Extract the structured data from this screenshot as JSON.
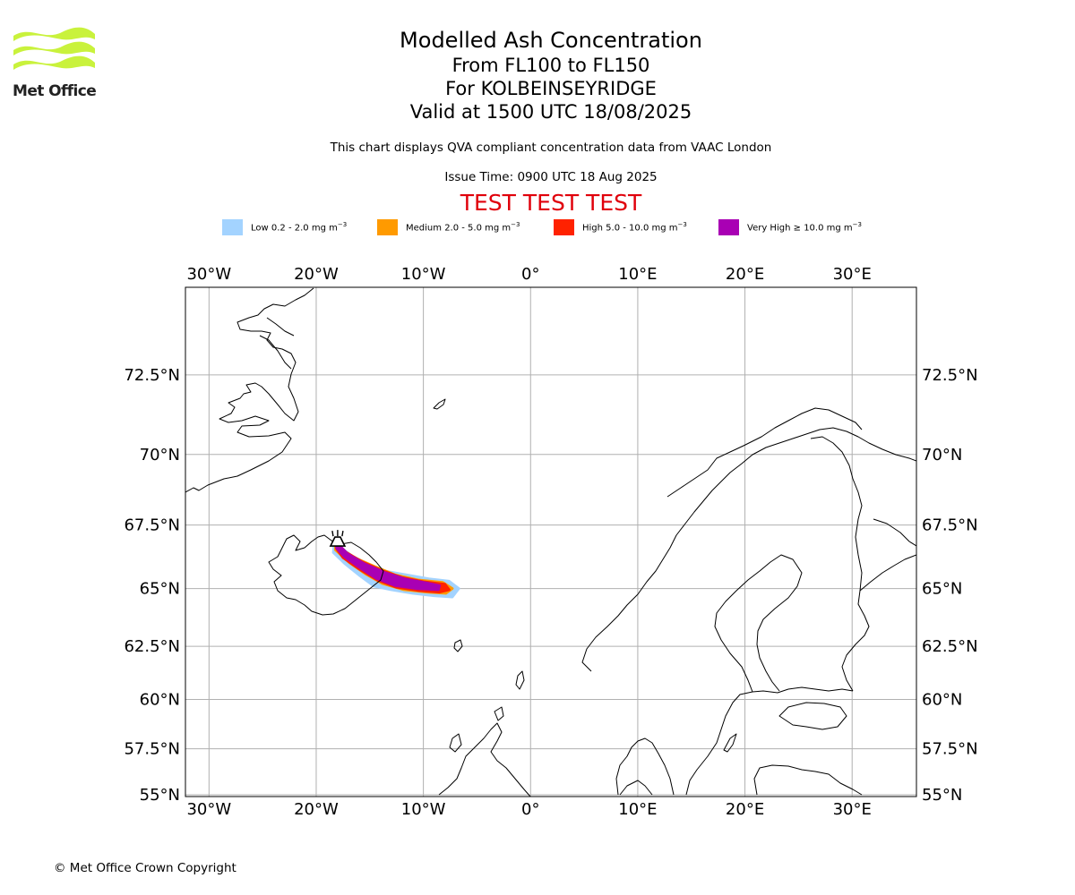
{
  "branding": {
    "logo_text": "Met Office",
    "logo_color": "#c9f23c",
    "logo_text_color": "#222222"
  },
  "header": {
    "title": "Modelled Ash Concentration",
    "levels": "From FL100 to FL150",
    "location": "For KOLBEINSEYRIDGE",
    "valid": "Valid at 1500 UTC 18/08/2025",
    "subtitle": "This chart displays QVA compliant concentration data from VAAC London",
    "issue_time": "Issue Time: 0900 UTC 18 Aug 2025",
    "test_banner": "TEST TEST TEST",
    "test_color": "#e0000b"
  },
  "legend": [
    {
      "name": "Low",
      "range": "0.2 - 2.0",
      "unit": "mg m",
      "exp": "−3",
      "color": "#a3d3ff",
      "cmp": ""
    },
    {
      "name": "Medium",
      "range": "2.0 - 5.0",
      "unit": "mg m",
      "exp": "−3",
      "color": "#ff9a00",
      "cmp": ""
    },
    {
      "name": "High",
      "range": "5.0 - 10.0",
      "unit": "mg m",
      "exp": "−3",
      "color": "#ff2200",
      "cmp": ""
    },
    {
      "name": "Very High",
      "range": "10.0",
      "unit": "mg m",
      "exp": "−3",
      "color": "#a900b4",
      "cmp": "≥"
    }
  ],
  "map": {
    "lon_range": [
      -32.2,
      36.0
    ],
    "lat_range": [
      54.9,
      74.9
    ],
    "lon_ticks": [
      -30,
      -20,
      -10,
      0,
      10,
      20,
      30
    ],
    "lon_tick_labels": [
      "30°W",
      "20°W",
      "10°W",
      "0°",
      "10°E",
      "20°E",
      "30°E"
    ],
    "lat_ticks": [
      55,
      57.5,
      60,
      62.5,
      65,
      67.5,
      70,
      72.5
    ],
    "lat_tick_labels": [
      "55°N",
      "57.5°N",
      "60°N",
      "62.5°N",
      "65°N",
      "67.5°N",
      "70°N",
      "72.5°N"
    ],
    "gridlines": true,
    "volcano": {
      "name": "KOLBEINSEYRIDGE",
      "lon": -18.0,
      "lat": 66.7
    },
    "ash_plume": [
      {
        "level": "Low",
        "path": [
          [
            -18.3,
            66.9
          ],
          [
            -17.6,
            66.6
          ],
          [
            -16.6,
            66.3
          ],
          [
            -15.2,
            66.0
          ],
          [
            -13.5,
            65.7
          ],
          [
            -11.5,
            65.55
          ],
          [
            -9.5,
            65.4
          ],
          [
            -7.6,
            65.3
          ],
          [
            -6.7,
            65.0
          ],
          [
            -7.3,
            64.65
          ],
          [
            -9.0,
            64.7
          ],
          [
            -11.0,
            64.8
          ],
          [
            -13.0,
            64.95
          ],
          [
            -14.6,
            65.1
          ],
          [
            -16.0,
            65.55
          ],
          [
            -17.3,
            66.0
          ],
          [
            -18.4,
            66.45
          ]
        ]
      },
      {
        "level": "Medium",
        "path": [
          [
            -18.2,
            66.85
          ],
          [
            -17.4,
            66.5
          ],
          [
            -16.2,
            66.2
          ],
          [
            -14.6,
            65.9
          ],
          [
            -12.6,
            65.55
          ],
          [
            -10.5,
            65.35
          ],
          [
            -8.2,
            65.25
          ],
          [
            -7.3,
            65.0
          ],
          [
            -7.9,
            64.8
          ],
          [
            -9.6,
            64.85
          ],
          [
            -11.8,
            64.95
          ],
          [
            -13.8,
            65.2
          ],
          [
            -15.4,
            65.6
          ],
          [
            -16.9,
            66.05
          ],
          [
            -18.2,
            66.55
          ]
        ]
      },
      {
        "level": "High",
        "path": [
          [
            -18.1,
            66.82
          ],
          [
            -17.2,
            66.45
          ],
          [
            -15.8,
            66.1
          ],
          [
            -14.0,
            65.75
          ],
          [
            -12.0,
            65.45
          ],
          [
            -10.0,
            65.28
          ],
          [
            -8.0,
            65.18
          ],
          [
            -7.6,
            64.95
          ],
          [
            -8.5,
            64.85
          ],
          [
            -10.5,
            64.92
          ],
          [
            -12.5,
            65.05
          ],
          [
            -14.3,
            65.35
          ],
          [
            -16.0,
            65.8
          ],
          [
            -17.5,
            66.25
          ],
          [
            -18.1,
            66.6
          ]
        ]
      },
      {
        "level": "Very High",
        "path": [
          [
            -18.0,
            66.8
          ],
          [
            -17.1,
            66.4
          ],
          [
            -15.5,
            66.0
          ],
          [
            -13.6,
            65.65
          ],
          [
            -11.6,
            65.38
          ],
          [
            -9.6,
            65.22
          ],
          [
            -8.5,
            65.12
          ],
          [
            -8.6,
            64.95
          ],
          [
            -10.6,
            65.0
          ],
          [
            -12.6,
            65.12
          ],
          [
            -14.4,
            65.42
          ],
          [
            -16.1,
            65.9
          ],
          [
            -17.4,
            66.3
          ],
          [
            -18.1,
            66.62
          ]
        ]
      }
    ]
  },
  "footer": {
    "copyright": "© Met Office Crown Copyright"
  }
}
